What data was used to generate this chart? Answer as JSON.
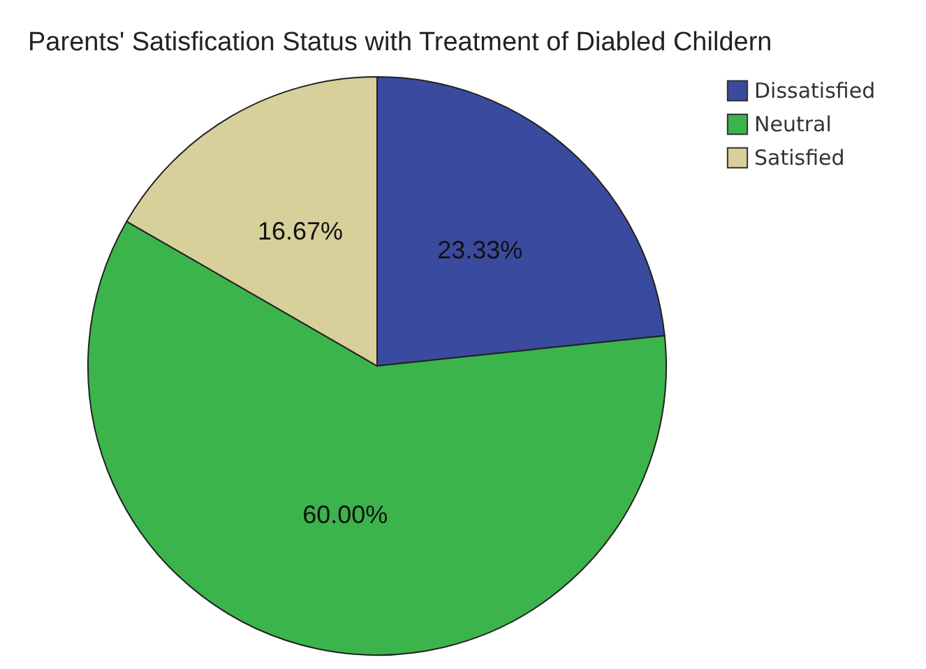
{
  "chart_data": {
    "type": "pie",
    "title": "Parents' Satisfication Status with Treatment of Diabled Childern",
    "categories": [
      "Dissatisfied",
      "Neutral",
      "Satisfied"
    ],
    "values": [
      23.33,
      60.0,
      16.67
    ],
    "value_labels": [
      "23.33%",
      "60.00%",
      "16.67%"
    ],
    "colors": [
      "#3a4a9e",
      "#3bb44c",
      "#d8d09a"
    ],
    "legend": "top right"
  }
}
